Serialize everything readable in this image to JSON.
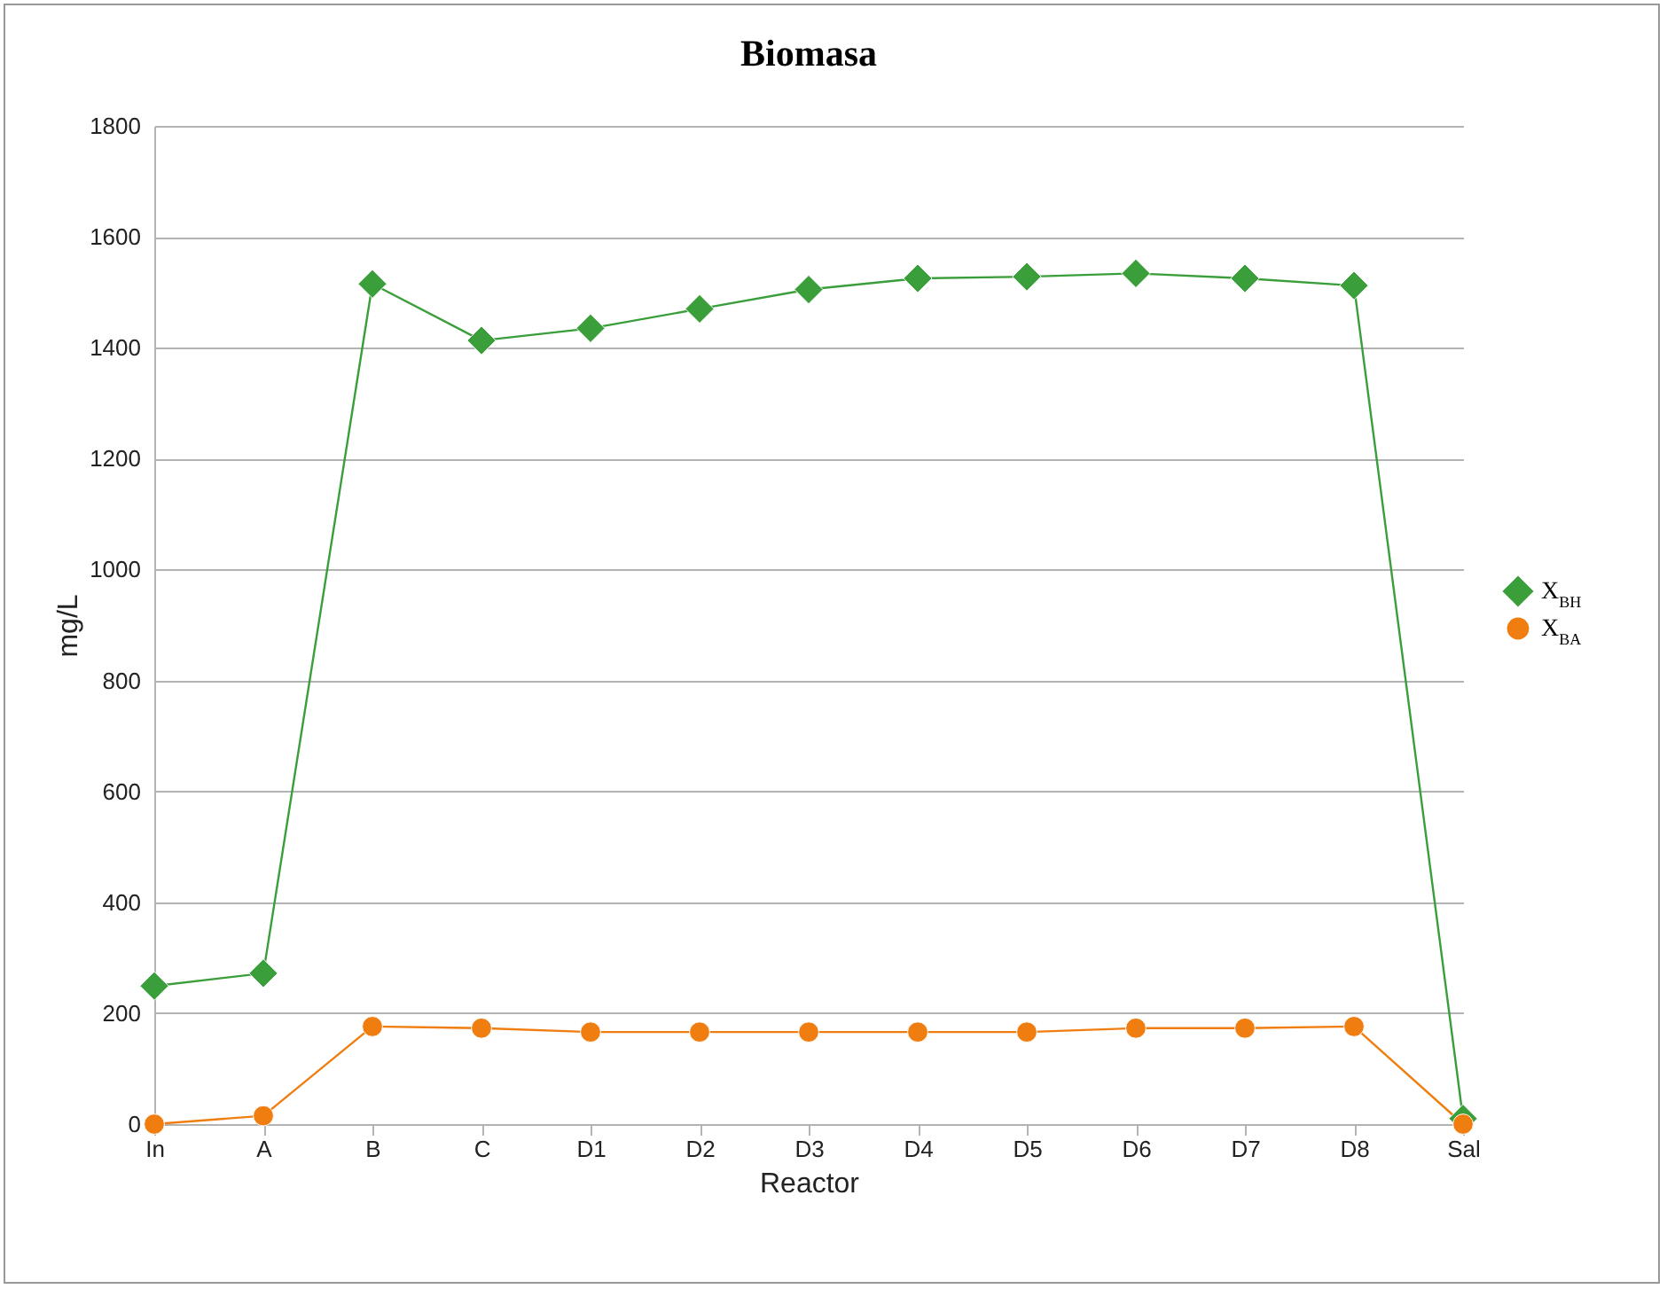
{
  "chart_data": {
    "type": "line",
    "title": "Biomasa",
    "xlabel": "Reactor",
    "ylabel": "mg/L",
    "categories": [
      "In",
      "A",
      "B",
      "C",
      "D1",
      "D2",
      "D3",
      "D4",
      "D5",
      "D6",
      "D7",
      "D8",
      "Sal"
    ],
    "series": [
      {
        "name": "X$_{BH}$",
        "color": "#3a9e3a",
        "marker": "diamond",
        "values": [
          249,
          272,
          1515,
          1413,
          1435,
          1470,
          1505,
          1525,
          1528,
          1534,
          1525,
          1512,
          10
        ]
      },
      {
        "name": "X$_{BA}$",
        "color": "#f07d10",
        "marker": "circle",
        "values": [
          0,
          15,
          176,
          173,
          166,
          166,
          166,
          166,
          166,
          173,
          173,
          176,
          0
        ]
      }
    ],
    "ylim": [
      0,
      1800
    ],
    "yticks": [
      0,
      200,
      400,
      600,
      800,
      1000,
      1200,
      1400,
      1600,
      1800
    ],
    "grid": "y",
    "legend": "right",
    "line_style": "solid"
  }
}
